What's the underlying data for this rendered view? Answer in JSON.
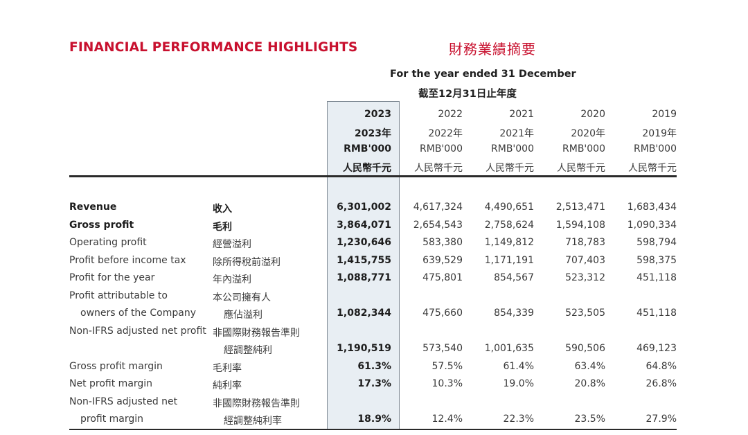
{
  "theme": {
    "accent": "#c8102e",
    "highlight_bg": "#e8eef3",
    "rule": "#2a2a2a"
  },
  "title": {
    "en": "FINANCIAL PERFORMANCE HIGHLIGHTS",
    "zh": "財務業績摘要"
  },
  "period": {
    "en": "For the year ended 31 December",
    "zh": "截至12月31日止年度"
  },
  "columns": [
    {
      "year": "2023",
      "year_zh": "2023年",
      "unit": "RMB'000",
      "unit_zh": "人民幣千元",
      "highlight": true
    },
    {
      "year": "2022",
      "year_zh": "2022年",
      "unit": "RMB'000",
      "unit_zh": "人民幣千元"
    },
    {
      "year": "2021",
      "year_zh": "2021年",
      "unit": "RMB'000",
      "unit_zh": "人民幣千元"
    },
    {
      "year": "2020",
      "year_zh": "2020年",
      "unit": "RMB'000",
      "unit_zh": "人民幣千元"
    },
    {
      "year": "2019",
      "year_zh": "2019年",
      "unit": "RMB'000",
      "unit_zh": "人民幣千元"
    }
  ],
  "rows": [
    {
      "en": "Revenue",
      "zh": "收入",
      "bold": true,
      "values": [
        "6,301,002",
        "4,617,324",
        "4,490,651",
        "2,513,471",
        "1,683,434"
      ]
    },
    {
      "en": "Gross profit",
      "zh": "毛利",
      "bold": true,
      "values": [
        "3,864,071",
        "2,654,543",
        "2,758,624",
        "1,594,108",
        "1,090,334"
      ]
    },
    {
      "en": "Operating profit",
      "zh": "經營溢利",
      "values": [
        "1,230,646",
        "583,380",
        "1,149,812",
        "718,783",
        "598,794"
      ]
    },
    {
      "en": "Profit before income tax",
      "zh": "除所得稅前溢利",
      "values": [
        "1,415,755",
        "639,529",
        "1,171,191",
        "707,403",
        "598,375"
      ]
    },
    {
      "en": "Profit for the year",
      "zh": "年內溢利",
      "values": [
        "1,088,771",
        "475,801",
        "854,567",
        "523,312",
        "451,118"
      ]
    },
    {
      "en": "Profit attributable to",
      "en2": "owners of the Company",
      "zh": "本公司擁有人",
      "zh2": "應佔溢利",
      "values": [
        "1,082,344",
        "475,660",
        "854,339",
        "523,505",
        "451,118"
      ]
    },
    {
      "en": "Non-IFRS adjusted net profit",
      "zh": "非國際財務報告準則",
      "zh2": "經調整純利",
      "values": [
        "1,190,519",
        "573,540",
        "1,001,635",
        "590,506",
        "469,123"
      ]
    },
    {
      "en": "Gross profit margin",
      "zh": "毛利率",
      "values": [
        "61.3%",
        "57.5%",
        "61.4%",
        "63.4%",
        "64.8%"
      ]
    },
    {
      "en": "Net profit margin",
      "zh": "純利率",
      "values": [
        "17.3%",
        "10.3%",
        "19.0%",
        "20.8%",
        "26.8%"
      ]
    },
    {
      "en": "Non-IFRS adjusted net",
      "en2": "profit margin",
      "zh": "非國際財務報告準則",
      "zh2": "經調整純利率",
      "values": [
        "18.9%",
        "12.4%",
        "22.3%",
        "23.5%",
        "27.9%"
      ]
    }
  ]
}
